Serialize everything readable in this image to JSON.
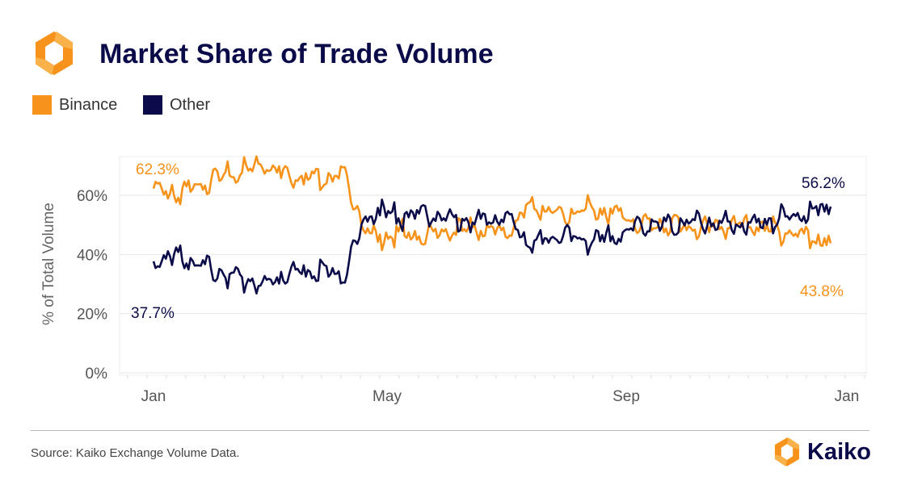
{
  "header": {
    "title": "Market Share of Trade Volume",
    "logo_icon": "kaiko-hexagon-logo-icon"
  },
  "legend": [
    {
      "label": "Binance",
      "color": "#F7931A"
    },
    {
      "label": "Other",
      "color": "#0B0B4A"
    }
  ],
  "footer": {
    "source": "Source: Kaiko Exchange Volume Data.",
    "brand": "Kaiko",
    "brand_icon": "kaiko-hexagon-logo-icon"
  },
  "chart_data": {
    "type": "line",
    "title": "Market Share of Trade Volume",
    "xlabel": "",
    "ylabel": "% of Total Volume",
    "x_ticks": [
      "Jan",
      "May",
      "Sep",
      "Jan"
    ],
    "y_ticks": [
      "0%",
      "20%",
      "40%",
      "60%"
    ],
    "ylim": [
      0,
      75
    ],
    "grid": true,
    "legend_position": "top-left",
    "x": [
      "Jan 1",
      "Jan 15",
      "Feb 1",
      "Feb 15",
      "Mar 1",
      "Mar 15",
      "Apr 1",
      "Apr 10",
      "Apr 20",
      "May 1",
      "May 15",
      "Jun 1",
      "Jun 15",
      "Jul 1",
      "Jul 15",
      "Aug 1",
      "Aug 15",
      "Sep 1",
      "Sep 15",
      "Oct 1",
      "Oct 15",
      "Nov 1",
      "Nov 15",
      "Dec 1",
      "Dec 15",
      "Dec 28"
    ],
    "series": [
      {
        "name": "Binance",
        "color": "#F7931A",
        "values": [
          62.3,
          60,
          65,
          67,
          71,
          67,
          66,
          67,
          45,
          47,
          46,
          48,
          49,
          47,
          57,
          53,
          55,
          54,
          50,
          50,
          49,
          50,
          50,
          48,
          46,
          43.8
        ]
      },
      {
        "name": "Other",
        "color": "#0B0B4A",
        "values": [
          37.7,
          40,
          35,
          33,
          29,
          33,
          34,
          33,
          55,
          53,
          54,
          52,
          51,
          53,
          43,
          47,
          45,
          46,
          50,
          50,
          51,
          50,
          50,
          52,
          54,
          56.2
        ]
      }
    ],
    "annotations": [
      {
        "text": "62.3%",
        "series": "Binance",
        "at": "start"
      },
      {
        "text": "37.7%",
        "series": "Other",
        "at": "start"
      },
      {
        "text": "56.2%",
        "series": "Other",
        "at": "end"
      },
      {
        "text": "43.8%",
        "series": "Binance",
        "at": "end"
      }
    ]
  }
}
